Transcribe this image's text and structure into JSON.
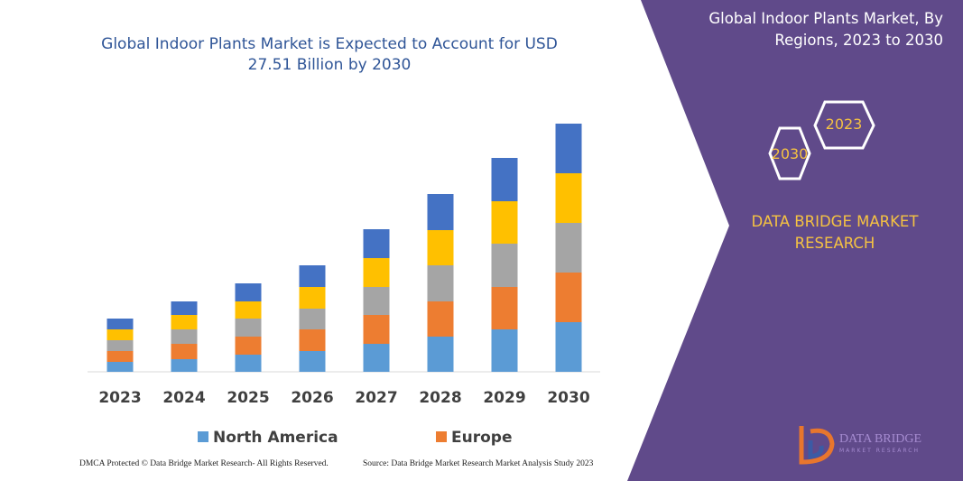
{
  "chart_data": {
    "type": "stacked_bar",
    "title": "Global Indoor Plants Market is Expected to Account for USD 27.51 Billion by 2030",
    "categories": [
      "2023",
      "2024",
      "2025",
      "2026",
      "2027",
      "2028",
      "2029",
      "2030"
    ],
    "series": [
      {
        "name": "North America",
        "color": "#5b9bd5",
        "values": [
          1.1,
          1.4,
          1.9,
          2.3,
          3.1,
          3.9,
          4.7,
          5.5
        ]
      },
      {
        "name": "Europe",
        "color": "#ed7d31",
        "values": [
          1.2,
          1.7,
          2.0,
          2.4,
          3.2,
          3.9,
          4.7,
          5.5
        ]
      },
      {
        "color": "#a5a5a5",
        "values": [
          1.2,
          1.6,
          2.0,
          2.3,
          3.1,
          4.0,
          4.8,
          5.5
        ]
      },
      {
        "color": "#ffc000",
        "values": [
          1.2,
          1.6,
          1.9,
          2.4,
          3.2,
          3.9,
          4.7,
          5.5
        ]
      },
      {
        "color": "#4472c4",
        "values": [
          1.2,
          1.5,
          2.0,
          2.4,
          3.2,
          4.0,
          4.8,
          5.5
        ]
      }
    ],
    "ylim": [
      0,
      30
    ]
  },
  "panel": {
    "title": "Global Indoor Plants Market, By Regions, 2023 to 2030",
    "hex_right": "2023",
    "hex_left": "2030",
    "brand": "DATA BRIDGE MARKET RESEARCH",
    "logo_top": "DATA BRIDGE",
    "logo_bottom": "MARKET RESEARCH"
  },
  "footer": {
    "left": "DMCA Protected © Data Bridge Market Research- All Rights Reserved.",
    "right": "Source: Data Bridge Market Research Market Analysis Study 2023"
  }
}
